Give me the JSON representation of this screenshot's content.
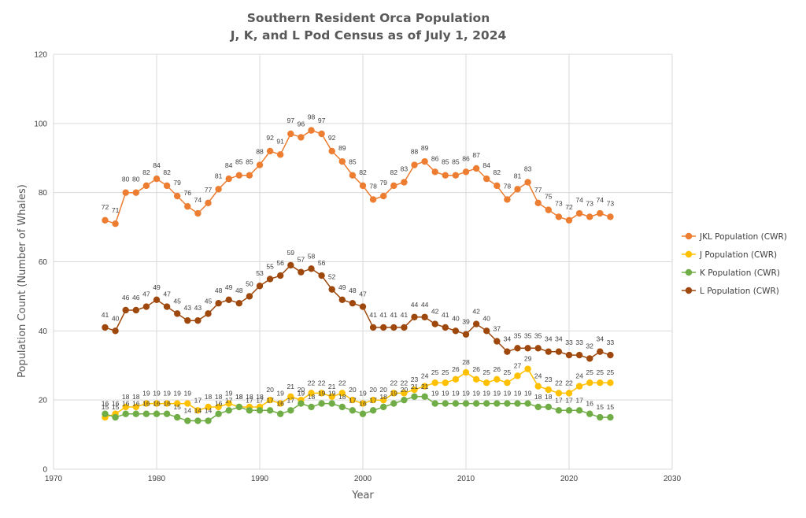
{
  "chart_data": {
    "type": "line",
    "title": "Southern Resident Orca Population",
    "subtitle": "J, K, and L Pod Census as of July 1, 2024",
    "xlabel": "Year",
    "ylabel": "Population Count (Number of Whales)",
    "xlim": [
      1970,
      2030
    ],
    "ylim": [
      0,
      120
    ],
    "xticks": [
      1970,
      1980,
      1990,
      2000,
      2010,
      2020,
      2030
    ],
    "yticks": [
      0,
      20,
      40,
      60,
      80,
      100,
      120
    ],
    "grid": true,
    "legend_position": "right",
    "x": [
      1975,
      1976,
      1977,
      1978,
      1979,
      1980,
      1981,
      1982,
      1983,
      1984,
      1985,
      1986,
      1987,
      1988,
      1989,
      1990,
      1991,
      1992,
      1993,
      1994,
      1995,
      1996,
      1997,
      1998,
      1999,
      2000,
      2001,
      2002,
      2003,
      2004,
      2005,
      2006,
      2007,
      2008,
      2009,
      2010,
      2011,
      2012,
      2013,
      2014,
      2015,
      2016,
      2017,
      2018,
      2019,
      2020,
      2021,
      2022,
      2023,
      2024
    ],
    "series": [
      {
        "name": "JKL Population (CWR)",
        "color": "#ed7d31",
        "label_offset": -14,
        "values": [
          72,
          71,
          80,
          80,
          82,
          84,
          82,
          79,
          76,
          74,
          77,
          81,
          84,
          85,
          85,
          88,
          92,
          91,
          97,
          96,
          98,
          97,
          92,
          89,
          85,
          82,
          78,
          79,
          82,
          83,
          88,
          89,
          86,
          85,
          85,
          86,
          87,
          84,
          82,
          78,
          81,
          83,
          77,
          75,
          73,
          72,
          74,
          73,
          74,
          73
        ]
      },
      {
        "name": "J Population (CWR)",
        "color": "#ffc000",
        "label_offset": -10,
        "values": [
          15,
          16,
          18,
          18,
          19,
          19,
          19,
          19,
          19,
          17,
          18,
          18,
          19,
          18,
          18,
          18,
          20,
          19,
          21,
          20,
          22,
          22,
          21,
          22,
          20,
          19,
          20,
          20,
          22,
          22,
          23,
          24,
          25,
          25,
          26,
          28,
          26,
          25,
          26,
          25,
          27,
          29,
          24,
          23,
          22,
          22,
          24,
          25,
          25,
          25
        ]
      },
      {
        "name": "K Population (CWR)",
        "color": "#70ad47",
        "label_offset": -10,
        "values": [
          16,
          15,
          16,
          16,
          16,
          16,
          16,
          15,
          14,
          14,
          14,
          16,
          17,
          18,
          17,
          17,
          17,
          16,
          17,
          19,
          18,
          19,
          19,
          18,
          17,
          16,
          17,
          18,
          19,
          20,
          21,
          21,
          19,
          19,
          19,
          19,
          19,
          19,
          19,
          19,
          19,
          19,
          18,
          18,
          17,
          17,
          17,
          16,
          15,
          15
        ]
      },
      {
        "name": "L Population (CWR)",
        "color": "#9e480e",
        "label_offset": -13,
        "values": [
          41,
          40,
          46,
          46,
          47,
          49,
          47,
          45,
          43,
          43,
          45,
          48,
          49,
          48,
          50,
          53,
          55,
          56,
          59,
          57,
          58,
          56,
          52,
          49,
          48,
          47,
          41,
          41,
          41,
          41,
          44,
          44,
          42,
          41,
          40,
          39,
          42,
          40,
          37,
          34,
          35,
          35,
          35,
          34,
          34,
          33,
          33,
          32,
          34,
          33
        ]
      }
    ]
  }
}
